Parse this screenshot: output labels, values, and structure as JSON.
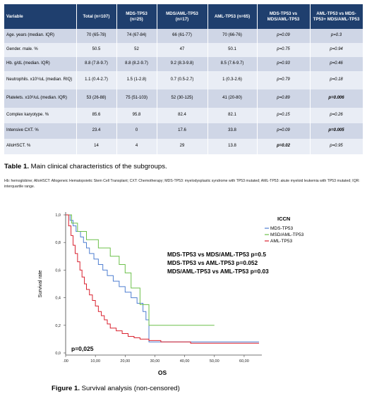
{
  "table": {
    "headers": [
      "Variable",
      "Total (n=107)",
      "MDS-TP53 (n=25)",
      "MDS/AML-TP53 (n=17)",
      "AML-TP53 (n=65)",
      "MDS-TP53 vs MDS/AML-TP53",
      "AML-TP53 vs MDS-TP53+ MDS/AML-TP53"
    ],
    "rows": [
      {
        "variable": "Age. years (median. IQR)",
        "total": "70 (65-78)",
        "mds": "74 (67-84)",
        "mdsaml": "66 (61-77)",
        "aml": "70 (66-76)",
        "p1": "p=0.09",
        "p2": "p=0.3"
      },
      {
        "variable": "Gender. male. %",
        "total": "50.5",
        "mds": "52",
        "mdsaml": "47",
        "aml": "50.1",
        "p1": "p=0.75",
        "p2": "p=0.94"
      },
      {
        "variable": "Hb. g/dL (median. IQR)",
        "total": "8.8 (7.8-9.7)",
        "mds": "8.8 (8.2-9.7)",
        "mdsaml": "9.2 (8.3-9.8)",
        "aml": "8.5 (7.6-9.7)",
        "p1": "p=0.93",
        "p2": "p=0.46"
      },
      {
        "variable": "Neutrophils. x10⁶/uL (median. RIQ)",
        "total": "1.1 (0.4-2.7)",
        "mds": "1.5 (1-2.8)",
        "mdsaml": "0.7 (0.5-2.7)",
        "aml": "1 (0.3-2.6)",
        "p1": "p=0.79",
        "p2": "p=0.18"
      },
      {
        "variable": "Platelets. x10⁶/uL (median. IQR)",
        "total": "53 (26-88)",
        "mds": "75 (51-103)",
        "mdsaml": "52 (30-125)",
        "aml": "41 (20-80)",
        "p1": "p=0.89",
        "p2": "p=0.006"
      },
      {
        "variable": "Complex karyotype. %",
        "total": "85.6",
        "mds": "95.8",
        "mdsaml": "82.4",
        "aml": "82.1",
        "p1": "p=0.15",
        "p2": "p=0.26"
      },
      {
        "variable": "Intensive CXT. %",
        "total": "23.4",
        "mds": "0",
        "mdsaml": "17.6",
        "aml": "33.8",
        "p1": "p=0.09",
        "p2": "p=0.005"
      },
      {
        "variable": "AlloHSCT. %",
        "total": "14",
        "mds": "4",
        "mdsaml": "29",
        "aml": "13.8",
        "p1": "p=0.02",
        "p2": "p=0.95"
      }
    ],
    "caption_label": "Table 1.",
    "caption_text": " Main clinical characteristics of the subgroups.",
    "footnote": "Hb: hemoglobine; AlloHSCT: Allogeneic Hematopoietic Stem Cell Transplant; CXT: Chemotherapy; MDS-TP53: myelodysplastic syndrome with TP53 mutated; AML-TP53: akute myeloid leukemia with TP53 mutated; IQR: interquartile range."
  },
  "chart_data": {
    "type": "line",
    "step": true,
    "title": "",
    "xlabel": "OS",
    "ylabel": "Survival rate",
    "xlim": [
      0,
      65
    ],
    "ylim": [
      0,
      1.0
    ],
    "xticks": [
      ".00",
      "10,00",
      "20,00",
      "30,00",
      "40,00",
      "50,00",
      "60,00"
    ],
    "yticks": [
      "0,0",
      "0,2",
      "0,4",
      "0,6",
      "0,8",
      "1,0"
    ],
    "legend_title": "ICCN",
    "legend_position": "top-right",
    "series": [
      {
        "name": "MDS-TP53",
        "color": "#4f7fd1",
        "x": [
          0,
          1.5,
          2.5,
          3.5,
          5,
          6,
          7,
          8,
          9.5,
          11,
          12.5,
          14,
          16,
          18,
          20,
          22,
          24,
          26,
          27,
          28,
          50,
          55,
          65
        ],
        "y": [
          1.0,
          0.96,
          0.92,
          0.88,
          0.84,
          0.8,
          0.76,
          0.72,
          0.68,
          0.64,
          0.6,
          0.56,
          0.52,
          0.48,
          0.44,
          0.4,
          0.36,
          0.3,
          0.24,
          0.08,
          0.08,
          0.08,
          0.08
        ]
      },
      {
        "name": "MSD/AML-TP53",
        "color": "#6cc04a",
        "x": [
          0,
          2,
          4,
          7,
          11,
          15,
          18,
          20,
          22,
          25,
          28,
          35,
          50
        ],
        "y": [
          1.0,
          0.94,
          0.88,
          0.82,
          0.76,
          0.7,
          0.64,
          0.58,
          0.47,
          0.35,
          0.2,
          0.2,
          0.2
        ]
      },
      {
        "name": "AML-TP53",
        "color": "#d9212f",
        "x": [
          0,
          1,
          1.8,
          2.5,
          3.2,
          4,
          4.8,
          5.5,
          6.3,
          7,
          8,
          9,
          10,
          11,
          12,
          13,
          14,
          15,
          17,
          19,
          21,
          23,
          25,
          28,
          32,
          36,
          42,
          50,
          60,
          65
        ],
        "y": [
          1.0,
          0.92,
          0.85,
          0.78,
          0.72,
          0.66,
          0.6,
          0.55,
          0.5,
          0.46,
          0.42,
          0.38,
          0.34,
          0.3,
          0.27,
          0.24,
          0.21,
          0.18,
          0.16,
          0.14,
          0.12,
          0.11,
          0.1,
          0.09,
          0.08,
          0.08,
          0.07,
          0.07,
          0.07,
          0.07
        ]
      }
    ],
    "annotations": [
      "MDS-TP53 vs MDS/AML-TP53 p=0.5",
      "MDS-TP53 vs AML-TP53 p=0.052",
      "MDS/AML-TP53 vs AML-TP53 p=0.03"
    ],
    "overall_p": "p=0,025"
  },
  "figure": {
    "caption_label": "Figure 1.",
    "caption_text": "  Survival analysis (non-censored)"
  }
}
